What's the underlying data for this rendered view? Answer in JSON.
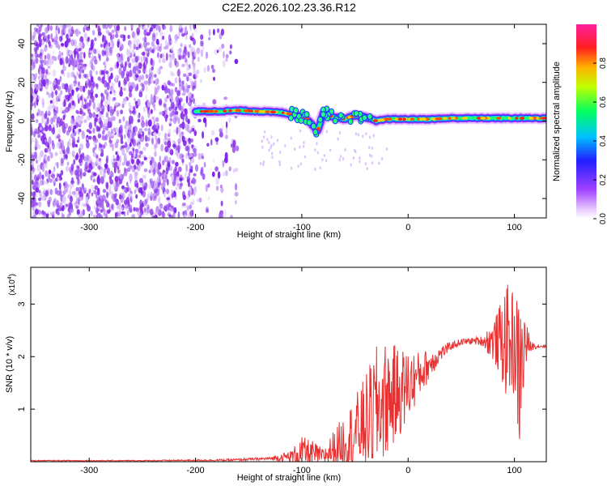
{
  "title": "C2E2.2026.102.23.36.R12",
  "chart_data": [
    {
      "type": "heatmap",
      "name": "spectrogram",
      "xlabel": "Height of straight line (km)",
      "ylabel": "Frequency (Hz)",
      "xlim": [
        -355,
        130
      ],
      "ylim": [
        -50,
        50
      ],
      "xticks": [
        -300,
        -200,
        -100,
        0,
        100
      ],
      "yticks": [
        -40,
        -20,
        0,
        20,
        40
      ],
      "noise_region_km": [
        -355,
        -150
      ],
      "noise_dense_until_km": -200,
      "signal_start_km": -200,
      "signal_track": {
        "x": [
          -200,
          -180,
          -160,
          -140,
          -120,
          -105,
          -95,
          -90,
          -85,
          -80,
          -75,
          -70,
          -60,
          -50,
          -40,
          -30,
          -20,
          -10,
          0,
          20,
          40,
          60,
          80,
          100,
          120,
          130
        ],
        "freq": [
          5,
          5,
          5.5,
          5,
          4.5,
          3,
          1,
          -2,
          -5,
          4,
          3,
          2,
          1,
          3,
          2,
          0,
          1,
          1,
          1,
          1,
          1.5,
          1.5,
          1.5,
          1.5,
          1.5,
          1.5
        ]
      }
    },
    {
      "type": "line",
      "name": "snr",
      "xlabel": "Height of straight line (km)",
      "ylabel": "SNR (10 * v/v)",
      "xlim": [
        -355,
        130
      ],
      "ylim": [
        0,
        3.7
      ],
      "scale_label": "(x10",
      "scale_exp": "4",
      "xticks": [
        -300,
        -200,
        -100,
        0,
        100
      ],
      "yticks": [
        1,
        2,
        3
      ],
      "envelope": {
        "x": [
          -355,
          -250,
          -170,
          -130,
          -110,
          -100,
          -90,
          -80,
          -70,
          -60,
          -50,
          -40,
          -30,
          -20,
          -10,
          0,
          10,
          20,
          30,
          40,
          50,
          60,
          70,
          80,
          85,
          90,
          95,
          100,
          105,
          110,
          115,
          120,
          130
        ],
        "base": [
          0.02,
          0.02,
          0.03,
          0.06,
          0.1,
          0.18,
          0.15,
          0.1,
          0.25,
          0.4,
          0.55,
          0.75,
          1.0,
          1.2,
          1.3,
          1.45,
          1.65,
          1.85,
          2.05,
          2.2,
          2.28,
          2.3,
          2.3,
          2.3,
          2.3,
          2.3,
          2.3,
          2.25,
          1.6,
          2.25,
          2.2,
          2.2,
          2.2
        ],
        "amp": [
          0.01,
          0.01,
          0.02,
          0.03,
          0.12,
          0.3,
          0.25,
          0.15,
          0.35,
          0.5,
          0.7,
          0.9,
          1.2,
          1.1,
          0.9,
          0.7,
          0.45,
          0.3,
          0.15,
          0.08,
          0.06,
          0.06,
          0.1,
          0.4,
          0.6,
          1.0,
          1.1,
          1.0,
          1.5,
          0.6,
          0.1,
          0.05,
          0.03
        ]
      }
    }
  ],
  "colorbar": {
    "label": "Normalized spectral amplitude",
    "range": [
      0,
      1
    ],
    "ticks": [
      "0.0",
      "0.2",
      "0.4",
      "0.6",
      "0.8"
    ],
    "tick_values": [
      0,
      0.2,
      0.4,
      0.6,
      0.8
    ]
  }
}
